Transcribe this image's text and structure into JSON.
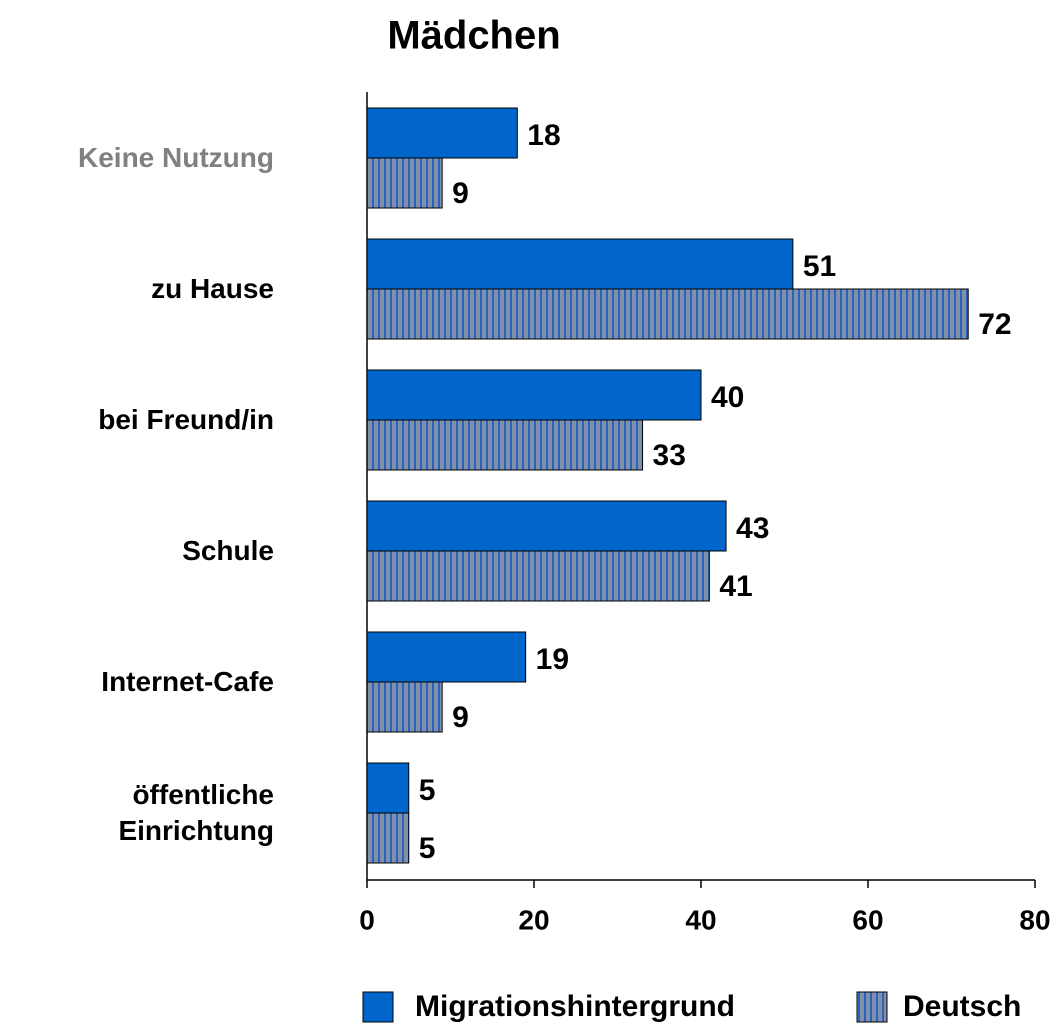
{
  "chart_data": {
    "type": "hbar",
    "title": "Mädchen",
    "categories": [
      "Keine Nutzung",
      "zu Hause",
      "bei Freund/in",
      "Schule",
      "Internet-Cafe",
      "öffentliche Einrichtung"
    ],
    "category_label_colors": [
      "#808080",
      "#000000",
      "#000000",
      "#000000",
      "#000000",
      "#000000"
    ],
    "series": [
      {
        "name": "Migrationshintergrund",
        "color": "#0066cc",
        "values": [
          18,
          51,
          40,
          43,
          19,
          5
        ]
      },
      {
        "name": "Deutsch",
        "color": "#8090a8",
        "pattern": "vertical-stripes",
        "stripe_color": "#2a62c0",
        "values": [
          9,
          72,
          33,
          41,
          9,
          5
        ]
      }
    ],
    "xlim": [
      0,
      80
    ],
    "xticks": [
      0,
      20,
      40,
      60,
      80
    ]
  }
}
